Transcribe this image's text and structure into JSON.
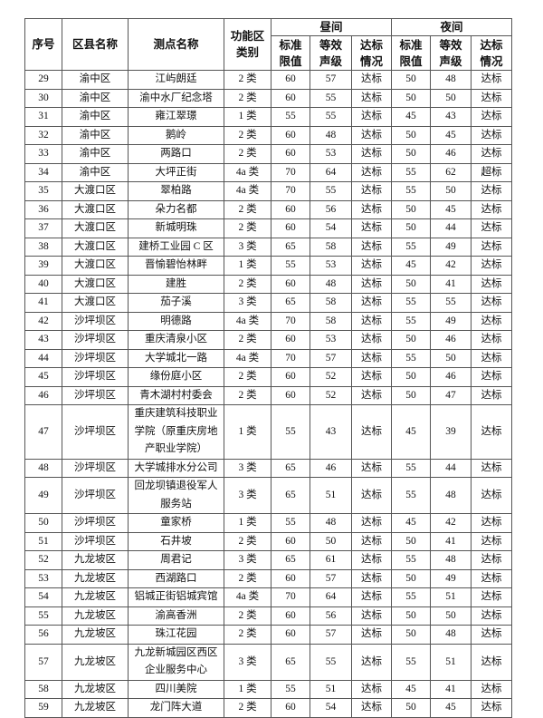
{
  "header": {
    "seq": "序号",
    "district": "区县名称",
    "site": "测点名称",
    "zone_class": "功能区类别",
    "day": "昼间",
    "night": "夜间",
    "limit": "标准限值",
    "level": "等效声级",
    "status": "达标情况"
  },
  "rows": [
    {
      "no": "29",
      "district": "渝中区",
      "site": "江屿朗廷",
      "cls": "2 类",
      "dl": "60",
      "dv": "57",
      "ds": "达标",
      "nl": "50",
      "nv": "48",
      "ns": "达标"
    },
    {
      "no": "30",
      "district": "渝中区",
      "site": "渝中水厂纪念塔",
      "cls": "2 类",
      "dl": "60",
      "dv": "55",
      "ds": "达标",
      "nl": "50",
      "nv": "50",
      "ns": "达标"
    },
    {
      "no": "31",
      "district": "渝中区",
      "site": "雍江翠璟",
      "cls": "1 类",
      "dl": "55",
      "dv": "55",
      "ds": "达标",
      "nl": "45",
      "nv": "43",
      "ns": "达标"
    },
    {
      "no": "32",
      "district": "渝中区",
      "site": "鹅岭",
      "cls": "2 类",
      "dl": "60",
      "dv": "48",
      "ds": "达标",
      "nl": "50",
      "nv": "45",
      "ns": "达标"
    },
    {
      "no": "33",
      "district": "渝中区",
      "site": "两路口",
      "cls": "2 类",
      "dl": "60",
      "dv": "53",
      "ds": "达标",
      "nl": "50",
      "nv": "46",
      "ns": "达标"
    },
    {
      "no": "34",
      "district": "渝中区",
      "site": "大坪正街",
      "cls": "4a 类",
      "dl": "70",
      "dv": "64",
      "ds": "达标",
      "nl": "55",
      "nv": "62",
      "ns": "超标"
    },
    {
      "no": "35",
      "district": "大渡口区",
      "site": "翠柏路",
      "cls": "4a 类",
      "dl": "70",
      "dv": "55",
      "ds": "达标",
      "nl": "55",
      "nv": "50",
      "ns": "达标"
    },
    {
      "no": "36",
      "district": "大渡口区",
      "site": "朵力名都",
      "cls": "2 类",
      "dl": "60",
      "dv": "56",
      "ds": "达标",
      "nl": "50",
      "nv": "45",
      "ns": "达标"
    },
    {
      "no": "37",
      "district": "大渡口区",
      "site": "新城明珠",
      "cls": "2 类",
      "dl": "60",
      "dv": "54",
      "ds": "达标",
      "nl": "50",
      "nv": "44",
      "ns": "达标"
    },
    {
      "no": "38",
      "district": "大渡口区",
      "site": "建桥工业园 C 区",
      "cls": "3 类",
      "dl": "65",
      "dv": "58",
      "ds": "达标",
      "nl": "55",
      "nv": "49",
      "ns": "达标"
    },
    {
      "no": "39",
      "district": "大渡口区",
      "site": "晋愉碧怡林畔",
      "cls": "1 类",
      "dl": "55",
      "dv": "53",
      "ds": "达标",
      "nl": "45",
      "nv": "42",
      "ns": "达标"
    },
    {
      "no": "40",
      "district": "大渡口区",
      "site": "建胜",
      "cls": "2 类",
      "dl": "60",
      "dv": "48",
      "ds": "达标",
      "nl": "50",
      "nv": "41",
      "ns": "达标"
    },
    {
      "no": "41",
      "district": "大渡口区",
      "site": "茄子溪",
      "cls": "3 类",
      "dl": "65",
      "dv": "58",
      "ds": "达标",
      "nl": "55",
      "nv": "55",
      "ns": "达标"
    },
    {
      "no": "42",
      "district": "沙坪坝区",
      "site": "明德路",
      "cls": "4a 类",
      "dl": "70",
      "dv": "58",
      "ds": "达标",
      "nl": "55",
      "nv": "49",
      "ns": "达标"
    },
    {
      "no": "43",
      "district": "沙坪坝区",
      "site": "重庆清泉小区",
      "cls": "2 类",
      "dl": "60",
      "dv": "53",
      "ds": "达标",
      "nl": "50",
      "nv": "46",
      "ns": "达标"
    },
    {
      "no": "44",
      "district": "沙坪坝区",
      "site": "大学城北一路",
      "cls": "4a 类",
      "dl": "70",
      "dv": "57",
      "ds": "达标",
      "nl": "55",
      "nv": "50",
      "ns": "达标"
    },
    {
      "no": "45",
      "district": "沙坪坝区",
      "site": "缘份庭小区",
      "cls": "2 类",
      "dl": "60",
      "dv": "52",
      "ds": "达标",
      "nl": "50",
      "nv": "46",
      "ns": "达标"
    },
    {
      "no": "46",
      "district": "沙坪坝区",
      "site": "青木湖村村委会",
      "cls": "2 类",
      "dl": "60",
      "dv": "52",
      "ds": "达标",
      "nl": "50",
      "nv": "47",
      "ns": "达标"
    },
    {
      "no": "47",
      "district": "沙坪坝区",
      "site": "重庆建筑科技职业学院（原重庆房地产职业学院）",
      "cls": "1 类",
      "dl": "55",
      "dv": "43",
      "ds": "达标",
      "nl": "45",
      "nv": "39",
      "ns": "达标"
    },
    {
      "no": "48",
      "district": "沙坪坝区",
      "site": "大学城排水分公司",
      "cls": "3 类",
      "dl": "65",
      "dv": "46",
      "ds": "达标",
      "nl": "55",
      "nv": "44",
      "ns": "达标"
    },
    {
      "no": "49",
      "district": "沙坪坝区",
      "site": "回龙坝镇退役军人服务站",
      "cls": "3 类",
      "dl": "65",
      "dv": "51",
      "ds": "达标",
      "nl": "55",
      "nv": "48",
      "ns": "达标"
    },
    {
      "no": "50",
      "district": "沙坪坝区",
      "site": "童家桥",
      "cls": "1 类",
      "dl": "55",
      "dv": "48",
      "ds": "达标",
      "nl": "45",
      "nv": "42",
      "ns": "达标"
    },
    {
      "no": "51",
      "district": "沙坪坝区",
      "site": "石井坡",
      "cls": "2 类",
      "dl": "60",
      "dv": "50",
      "ds": "达标",
      "nl": "50",
      "nv": "41",
      "ns": "达标"
    },
    {
      "no": "52",
      "district": "九龙坡区",
      "site": "周君记",
      "cls": "3 类",
      "dl": "65",
      "dv": "61",
      "ds": "达标",
      "nl": "55",
      "nv": "48",
      "ns": "达标"
    },
    {
      "no": "53",
      "district": "九龙坡区",
      "site": "西湖路口",
      "cls": "2 类",
      "dl": "60",
      "dv": "57",
      "ds": "达标",
      "nl": "50",
      "nv": "49",
      "ns": "达标"
    },
    {
      "no": "54",
      "district": "九龙坡区",
      "site": "铝城正街铝城宾馆",
      "cls": "4a 类",
      "dl": "70",
      "dv": "64",
      "ds": "达标",
      "nl": "55",
      "nv": "51",
      "ns": "达标"
    },
    {
      "no": "55",
      "district": "九龙坡区",
      "site": "渝高香洲",
      "cls": "2 类",
      "dl": "60",
      "dv": "56",
      "ds": "达标",
      "nl": "50",
      "nv": "50",
      "ns": "达标"
    },
    {
      "no": "56",
      "district": "九龙坡区",
      "site": "珠江花园",
      "cls": "2 类",
      "dl": "60",
      "dv": "57",
      "ds": "达标",
      "nl": "50",
      "nv": "48",
      "ns": "达标"
    },
    {
      "no": "57",
      "district": "九龙坡区",
      "site": "九龙新城园区西区企业服务中心",
      "cls": "3 类",
      "dl": "65",
      "dv": "55",
      "ds": "达标",
      "nl": "55",
      "nv": "51",
      "ns": "达标"
    },
    {
      "no": "58",
      "district": "九龙坡区",
      "site": "四川美院",
      "cls": "1 类",
      "dl": "55",
      "dv": "51",
      "ds": "达标",
      "nl": "45",
      "nv": "41",
      "ns": "达标"
    },
    {
      "no": "59",
      "district": "九龙坡区",
      "site": "龙门阵大道",
      "cls": "2 类",
      "dl": "60",
      "dv": "54",
      "ds": "达标",
      "nl": "50",
      "nv": "45",
      "ns": "达标"
    }
  ]
}
